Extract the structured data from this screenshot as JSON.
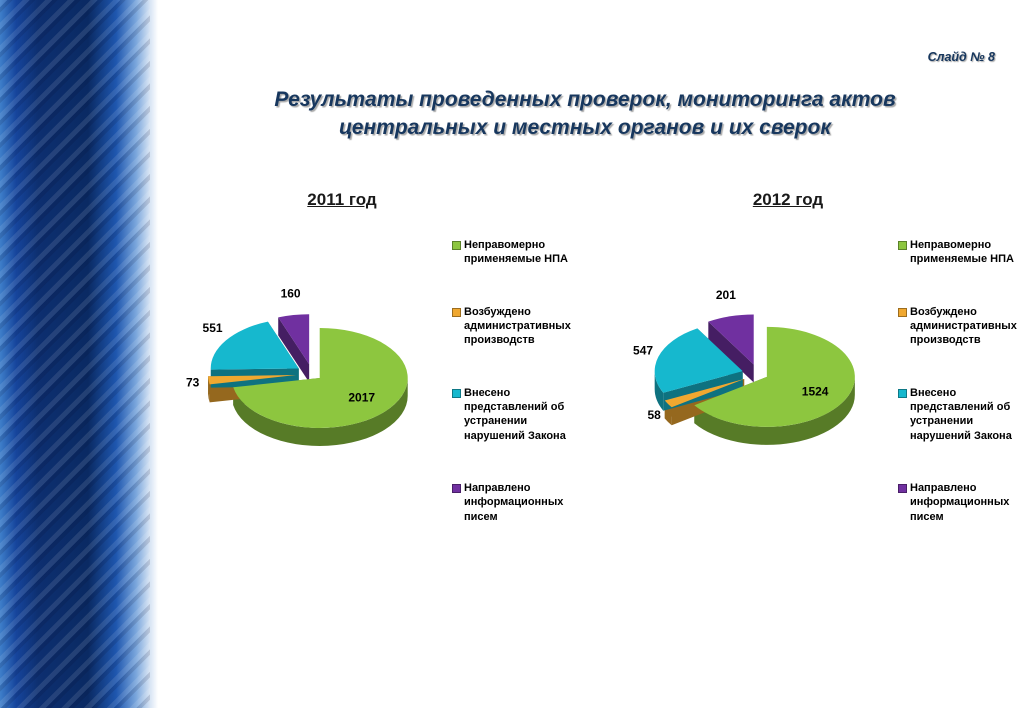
{
  "slide": {
    "number_label": "Слайд № 8",
    "title": "Результаты проведенных проверок, мониторинга актов центральных и местных органов и их сверок",
    "colors": {
      "title_text": "#17375E",
      "border_dark_blue": "#0A2A63",
      "border_light_blue": "#2F6FC0",
      "background": "#FFFFFF"
    }
  },
  "chart_data": [
    {
      "type": "pie",
      "title": "2011 год",
      "effect": "3d-exploded",
      "legend_position": "right",
      "labels": [
        "Неправомерно применяемые НПА",
        "Возбуждено административных производств",
        "Внесено представлений об устранении нарушений Закона",
        "Направлено информационных писем"
      ],
      "values": [
        2017,
        73,
        551,
        160
      ],
      "colors": [
        "#8DC63F",
        "#F0A830",
        "#16B8CE",
        "#7030A0"
      ]
    },
    {
      "type": "pie",
      "title": "2012 год",
      "effect": "3d-exploded",
      "legend_position": "right",
      "labels": [
        "Неправомерно применяемые НПА",
        "Возбуждено административных производств",
        "Внесено представлений об устранении нарушений Закона",
        "Направлено информационных писем"
      ],
      "values": [
        1524,
        58,
        547,
        201
      ],
      "colors": [
        "#8DC63F",
        "#F0A830",
        "#16B8CE",
        "#7030A0"
      ]
    }
  ]
}
